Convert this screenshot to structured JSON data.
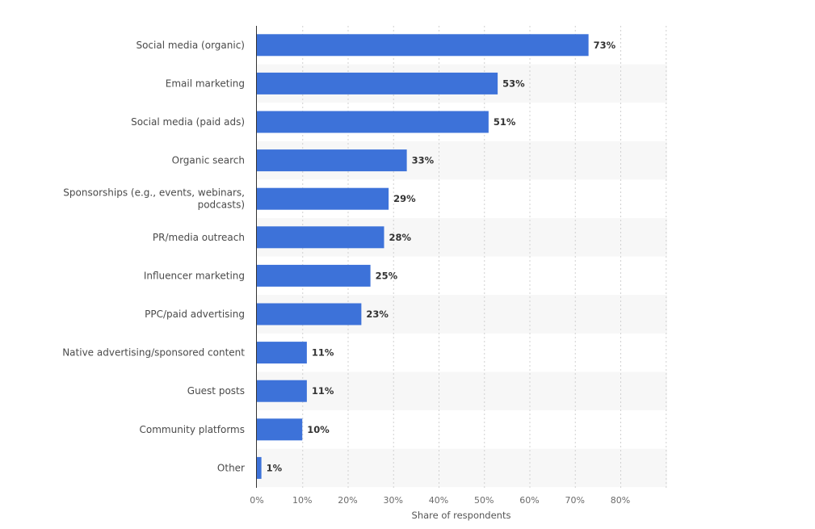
{
  "chart_data": {
    "type": "bar",
    "orientation": "horizontal",
    "categories": [
      "Social media (organic)",
      "Email marketing",
      "Social media (paid ads)",
      "Organic search",
      [
        "Sponsorships (e.g., events, webinars,",
        "podcasts)"
      ],
      "PR/media outreach",
      "Influencer marketing",
      "PPC/paid advertising",
      "Native advertising/sponsored content",
      "Guest posts",
      "Community platforms",
      "Other"
    ],
    "values": [
      73,
      53,
      51,
      33,
      29,
      28,
      25,
      23,
      11,
      11,
      10,
      1
    ],
    "value_labels": [
      "73%",
      "53%",
      "51%",
      "33%",
      "29%",
      "28%",
      "25%",
      "23%",
      "11%",
      "11%",
      "10%",
      "1%"
    ],
    "xticks": [
      0,
      10,
      20,
      30,
      40,
      50,
      60,
      70,
      80
    ],
    "xtick_labels": [
      "0%",
      "10%",
      "20%",
      "30%",
      "40%",
      "50%",
      "60%",
      "70%",
      "80%"
    ],
    "xlim": [
      0,
      90
    ],
    "xlabel": "Share of respondents",
    "ylabel": "",
    "grid": true,
    "bar_color": "#3d72d9",
    "band_color": "#f7f7f7"
  }
}
